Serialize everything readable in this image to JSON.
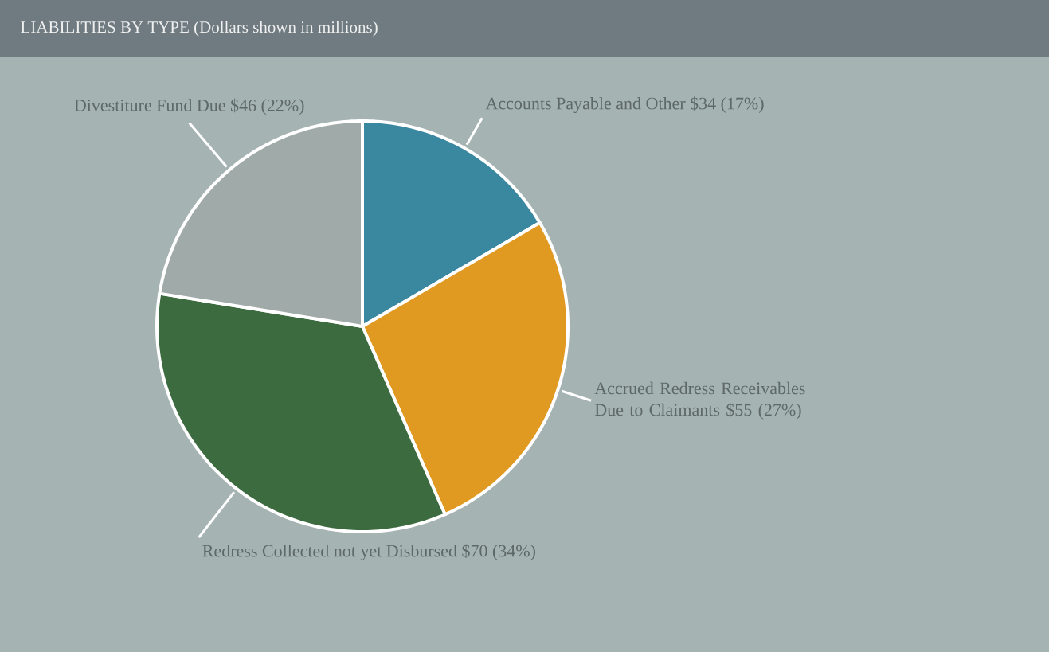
{
  "chart_data": {
    "type": "pie",
    "title": "LIABILITIES BY TYPE (Dollars shown in millions)",
    "categories": [
      "Accounts Payable and Other",
      "Accrued Redress Receivables Due to Claimants",
      "Redress Collected not yet Disbursed",
      "Divestiture Fund Due"
    ],
    "values": [
      34,
      55,
      70,
      46
    ],
    "value_labels": [
      "$34 (17%)",
      "$55 (27%)",
      "$70 (34%)",
      "$46 (22%)"
    ],
    "colors": [
      "#3a87a0",
      "#e09a22",
      "#3d6b40",
      "#a0aaa8"
    ]
  }
}
